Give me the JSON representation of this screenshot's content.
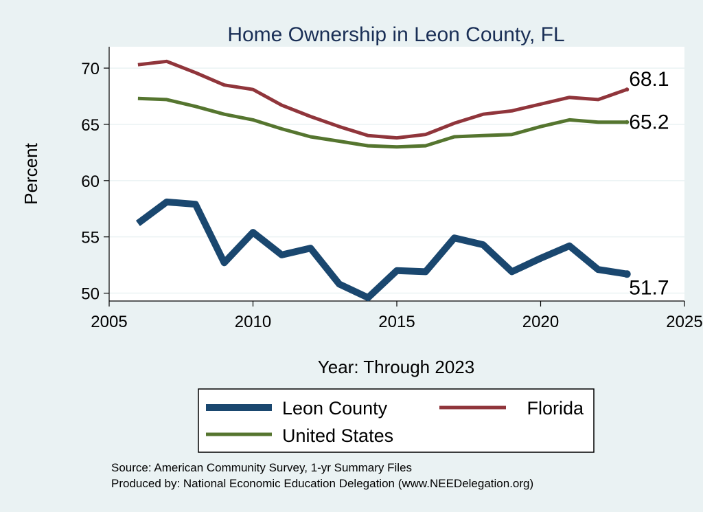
{
  "chart_data": {
    "type": "line",
    "title": "Home Ownership in Leon County, FL",
    "xlabel": "Year: Through 2023",
    "ylabel": "Percent",
    "xlim": [
      2005,
      2025
    ],
    "ylim": [
      49.3,
      71.9
    ],
    "xticks": [
      2005,
      2010,
      2015,
      2020,
      2025
    ],
    "yticks": [
      50,
      55,
      60,
      65,
      70
    ],
    "grid": true,
    "legend_position": "bottom",
    "x": [
      2006,
      2007,
      2008,
      2009,
      2010,
      2011,
      2012,
      2013,
      2014,
      2015,
      2016,
      2017,
      2018,
      2019,
      2020,
      2021,
      2022,
      2023
    ],
    "series": [
      {
        "name": "Leon County",
        "color": "#1a476f",
        "end_label": "51.7",
        "values": [
          56.2,
          58.1,
          57.9,
          52.7,
          55.4,
          53.4,
          54.0,
          50.8,
          49.6,
          52.0,
          51.9,
          54.9,
          54.3,
          51.9,
          53.1,
          54.2,
          52.1,
          51.7
        ]
      },
      {
        "name": "Florida",
        "color": "#90353b",
        "end_label": "68.1",
        "values": [
          70.3,
          70.6,
          69.6,
          68.5,
          68.1,
          66.7,
          65.7,
          64.8,
          64.0,
          63.8,
          64.1,
          65.1,
          65.9,
          66.2,
          66.8,
          67.4,
          67.2,
          68.1
        ]
      },
      {
        "name": "United States",
        "color": "#55752f",
        "end_label": "65.2",
        "values": [
          67.3,
          67.2,
          66.6,
          65.9,
          65.4,
          64.6,
          63.9,
          63.5,
          63.1,
          63.0,
          63.1,
          63.9,
          64.0,
          64.1,
          64.8,
          65.4,
          65.2,
          65.2
        ]
      }
    ]
  },
  "notes": {
    "source": "Source: American Community Survey, 1-yr Summary Files",
    "produced_by": "Produced by: National Economic Education Delegation (www.NEEDelegation.org)"
  }
}
